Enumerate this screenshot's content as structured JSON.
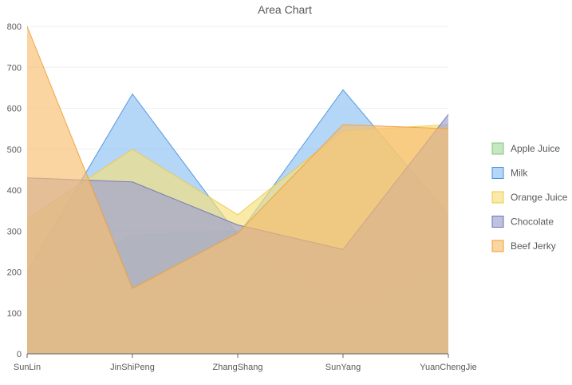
{
  "chart_data": {
    "type": "area",
    "title": "Area Chart",
    "categories": [
      "SunLin",
      "JinShiPeng",
      "ZhangShang",
      "SunYang",
      "YuanChengJie"
    ],
    "ylim": [
      0,
      800
    ],
    "yticks": [
      0,
      100,
      200,
      300,
      400,
      500,
      600,
      700,
      800
    ],
    "grid": true,
    "legend_position": "right",
    "series": [
      {
        "name": "Apple Juice",
        "color": "#a4dba0",
        "stroke": "#82c57d",
        "values": [
          150,
          290,
          300,
          120,
          230
        ]
      },
      {
        "name": "Milk",
        "color": "#8cc0f2",
        "stroke": "#4a90d9",
        "values": [
          200,
          635,
          290,
          645,
          340
        ]
      },
      {
        "name": "Orange Juice",
        "color": "#f6de7a",
        "stroke": "#eec84a",
        "values": [
          330,
          500,
          340,
          545,
          560
        ]
      },
      {
        "name": "Chocolate",
        "color": "#9ca0cf",
        "stroke": "#6e74b6",
        "values": [
          430,
          420,
          315,
          255,
          585
        ]
      },
      {
        "name": "Beef Jerky",
        "color": "#f7bd6e",
        "stroke": "#ef9e35",
        "values": [
          800,
          160,
          295,
          560,
          550
        ]
      }
    ]
  }
}
